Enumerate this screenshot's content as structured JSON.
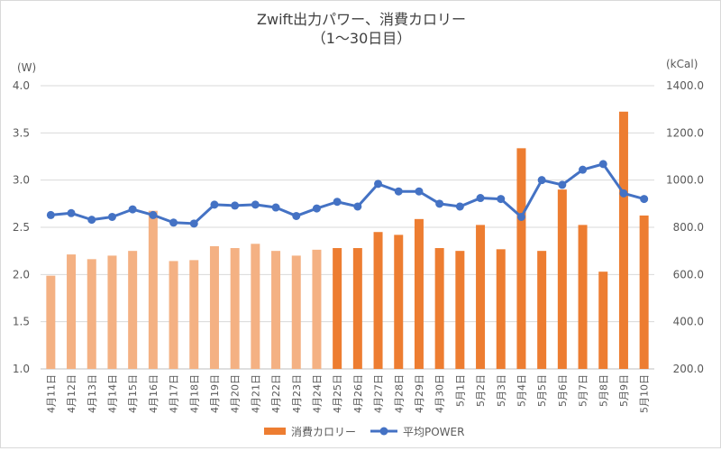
{
  "chart_data": {
    "type": "bar+line",
    "title": "Zwift出力パワー、消費カロリー",
    "subtitle": "（1～30日目）",
    "y_left_unit": "(W)",
    "y_right_unit": "(kCal)",
    "y_left_range": [
      1.0,
      4.0
    ],
    "y_left_ticks": [
      "1.0",
      "1.5",
      "2.0",
      "2.5",
      "3.0",
      "3.5",
      "4.0"
    ],
    "y_right_range": [
      200,
      1400
    ],
    "y_right_ticks": [
      "200.0",
      "400.0",
      "600.0",
      "800.0",
      "1000.0",
      "1200.0",
      "1400.0"
    ],
    "grid": "horizontal",
    "legend_position": "bottom",
    "categories": [
      "4月11日",
      "4月12日",
      "4月13日",
      "4月14日",
      "4月15日",
      "4月16日",
      "4月17日",
      "4月18日",
      "4月19日",
      "4月20日",
      "4月21日",
      "4月22日",
      "4月23日",
      "4月24日",
      "4月25日",
      "4月26日",
      "4月27日",
      "4月28日",
      "4月29日",
      "4月30日",
      "5月1日",
      "5月2日",
      "5月3日",
      "5月4日",
      "5月5日",
      "5月6日",
      "5月7日",
      "5月8日",
      "5月9日",
      "5月10日"
    ],
    "series": [
      {
        "name": "消費カロリー",
        "type": "bar",
        "axis": "right",
        "color": "#ed7d31",
        "light_color": "#f4b183",
        "light_count": 14,
        "values": [
          595,
          685,
          665,
          680,
          700,
          870,
          657,
          661,
          720,
          712,
          730,
          700,
          680,
          705,
          712,
          712,
          780,
          768,
          835,
          712,
          700,
          810,
          707,
          1135,
          700,
          960,
          810,
          612,
          1290,
          850
        ]
      },
      {
        "name": "平均POWER",
        "type": "line",
        "axis": "left",
        "color": "#4472c4",
        "values": [
          2.63,
          2.65,
          2.58,
          2.61,
          2.69,
          2.63,
          2.55,
          2.54,
          2.74,
          2.73,
          2.74,
          2.71,
          2.62,
          2.7,
          2.77,
          2.72,
          2.96,
          2.88,
          2.88,
          2.75,
          2.72,
          2.81,
          2.8,
          2.61,
          3.0,
          2.95,
          3.11,
          3.17,
          2.86,
          2.8
        ]
      }
    ]
  }
}
